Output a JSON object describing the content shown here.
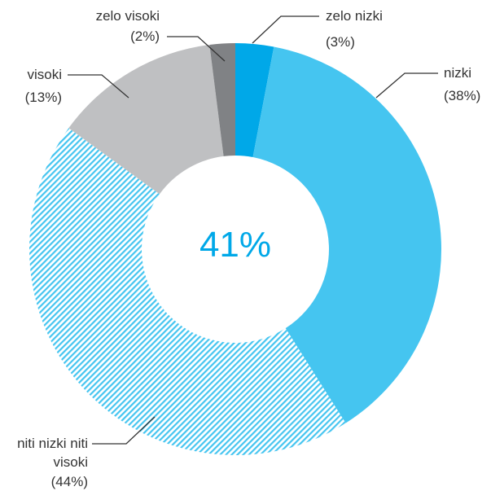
{
  "chart_data": {
    "type": "donut",
    "center_label": "41%",
    "categories": [
      "zelo nizki",
      "nizki",
      "niti nizki niti visoki",
      "visoki",
      "zelo visoki"
    ],
    "values": [
      3,
      38,
      44,
      13,
      2
    ],
    "value_labels": [
      "(3%)",
      "(38%)",
      "(44%)",
      "(13%)",
      "(2%)"
    ],
    "colors": [
      "#00a8e8",
      "#45c5f0",
      "hatched",
      "#bfc0c2",
      "#808285"
    ]
  }
}
